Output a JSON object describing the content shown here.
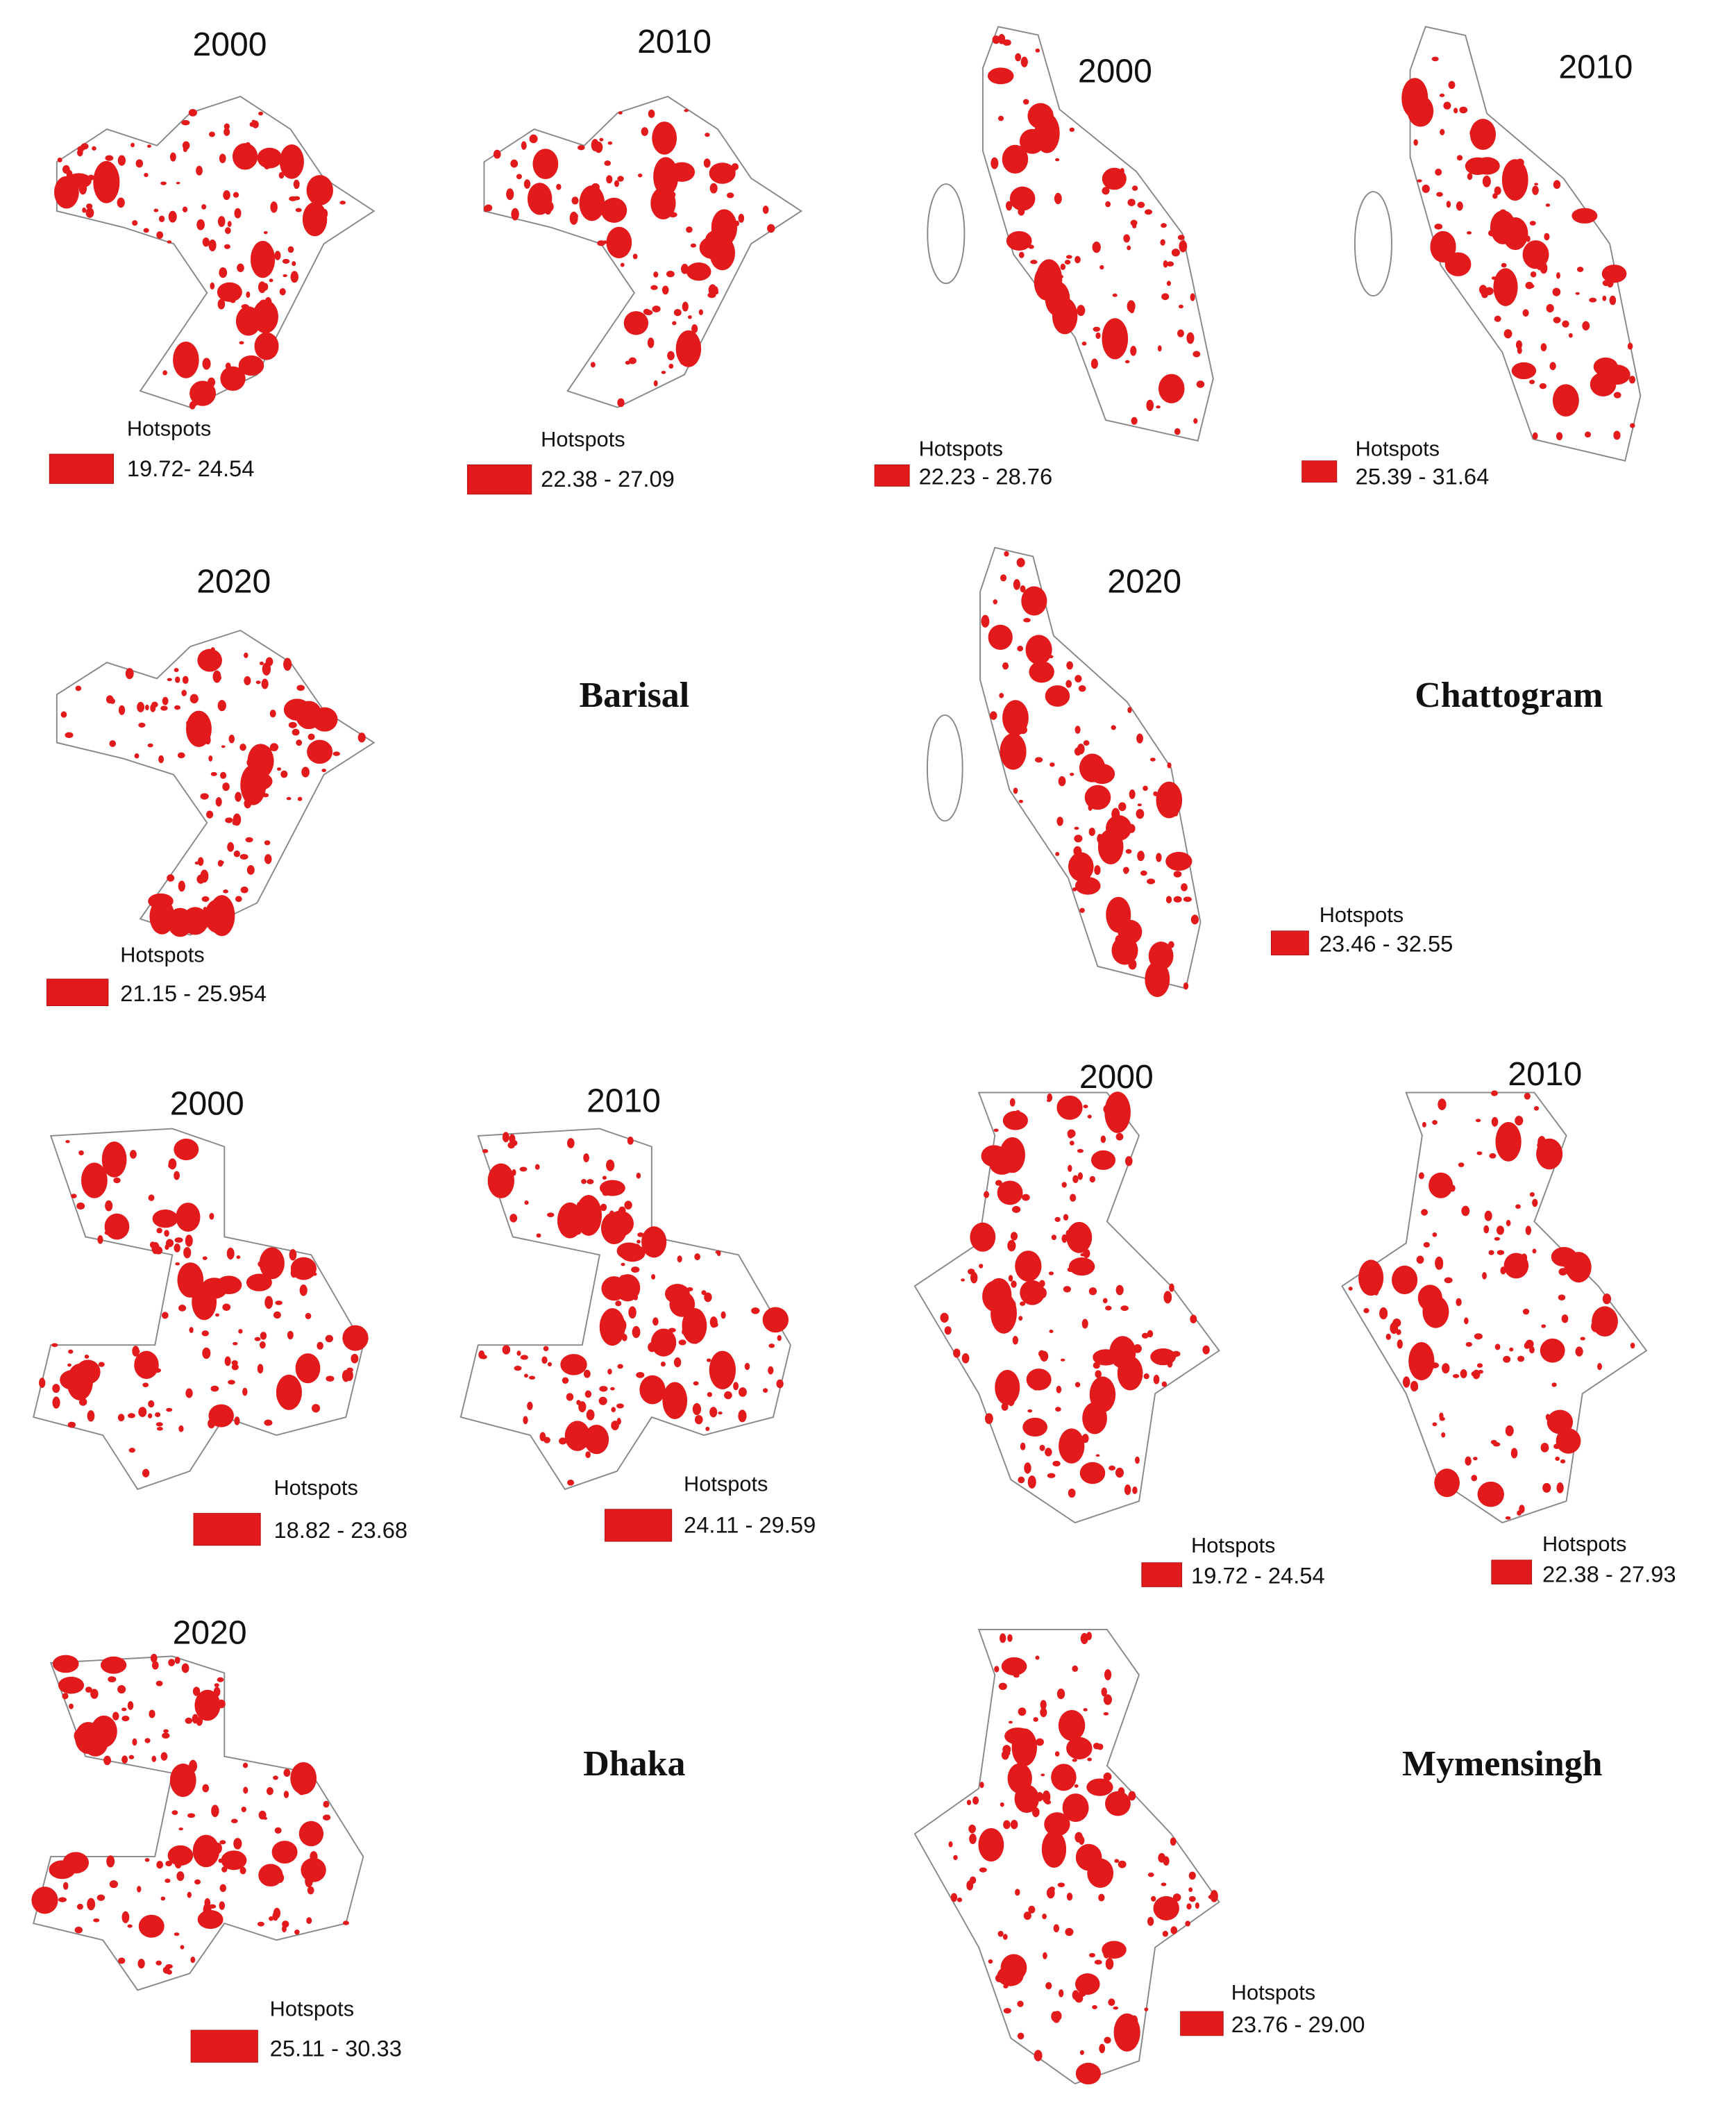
{
  "regions": [
    {
      "name": "Barisal",
      "panels": [
        {
          "year": "2000",
          "legend_title": "Hotspots",
          "range": "19.72- 24.54"
        },
        {
          "year": "2010",
          "legend_title": "Hotspots",
          "range": "22.38 - 27.09"
        },
        {
          "year": "2020",
          "legend_title": "Hotspots",
          "range": "21.15 - 25.954"
        }
      ]
    },
    {
      "name": "Chattogram",
      "panels": [
        {
          "year": "2000",
          "legend_title": "Hotspots",
          "range": "22.23 - 28.76"
        },
        {
          "year": "2010",
          "legend_title": "Hotspots",
          "range": "25.39 - 31.64"
        },
        {
          "year": "2020",
          "legend_title": "Hotspots",
          "range": "23.46 - 32.55"
        }
      ]
    },
    {
      "name": "Dhaka",
      "panels": [
        {
          "year": "2000",
          "legend_title": "Hotspots",
          "range": "18.82 - 23.68"
        },
        {
          "year": "2010",
          "legend_title": "Hotspots",
          "range": "24.11 - 29.59"
        },
        {
          "year": "2020",
          "legend_title": "Hotspots",
          "range": "25.11 - 30.33"
        }
      ]
    },
    {
      "name": "Mymensingh",
      "panels": [
        {
          "year": "2000",
          "legend_title": "Hotspots",
          "range": "19.72 - 24.54"
        },
        {
          "year": "2010",
          "legend_title": "Hotspots",
          "range": "22.38 - 27.93"
        },
        {
          "legend_title": "Hotspots",
          "range": "23.76 - 29.00"
        }
      ]
    }
  ]
}
